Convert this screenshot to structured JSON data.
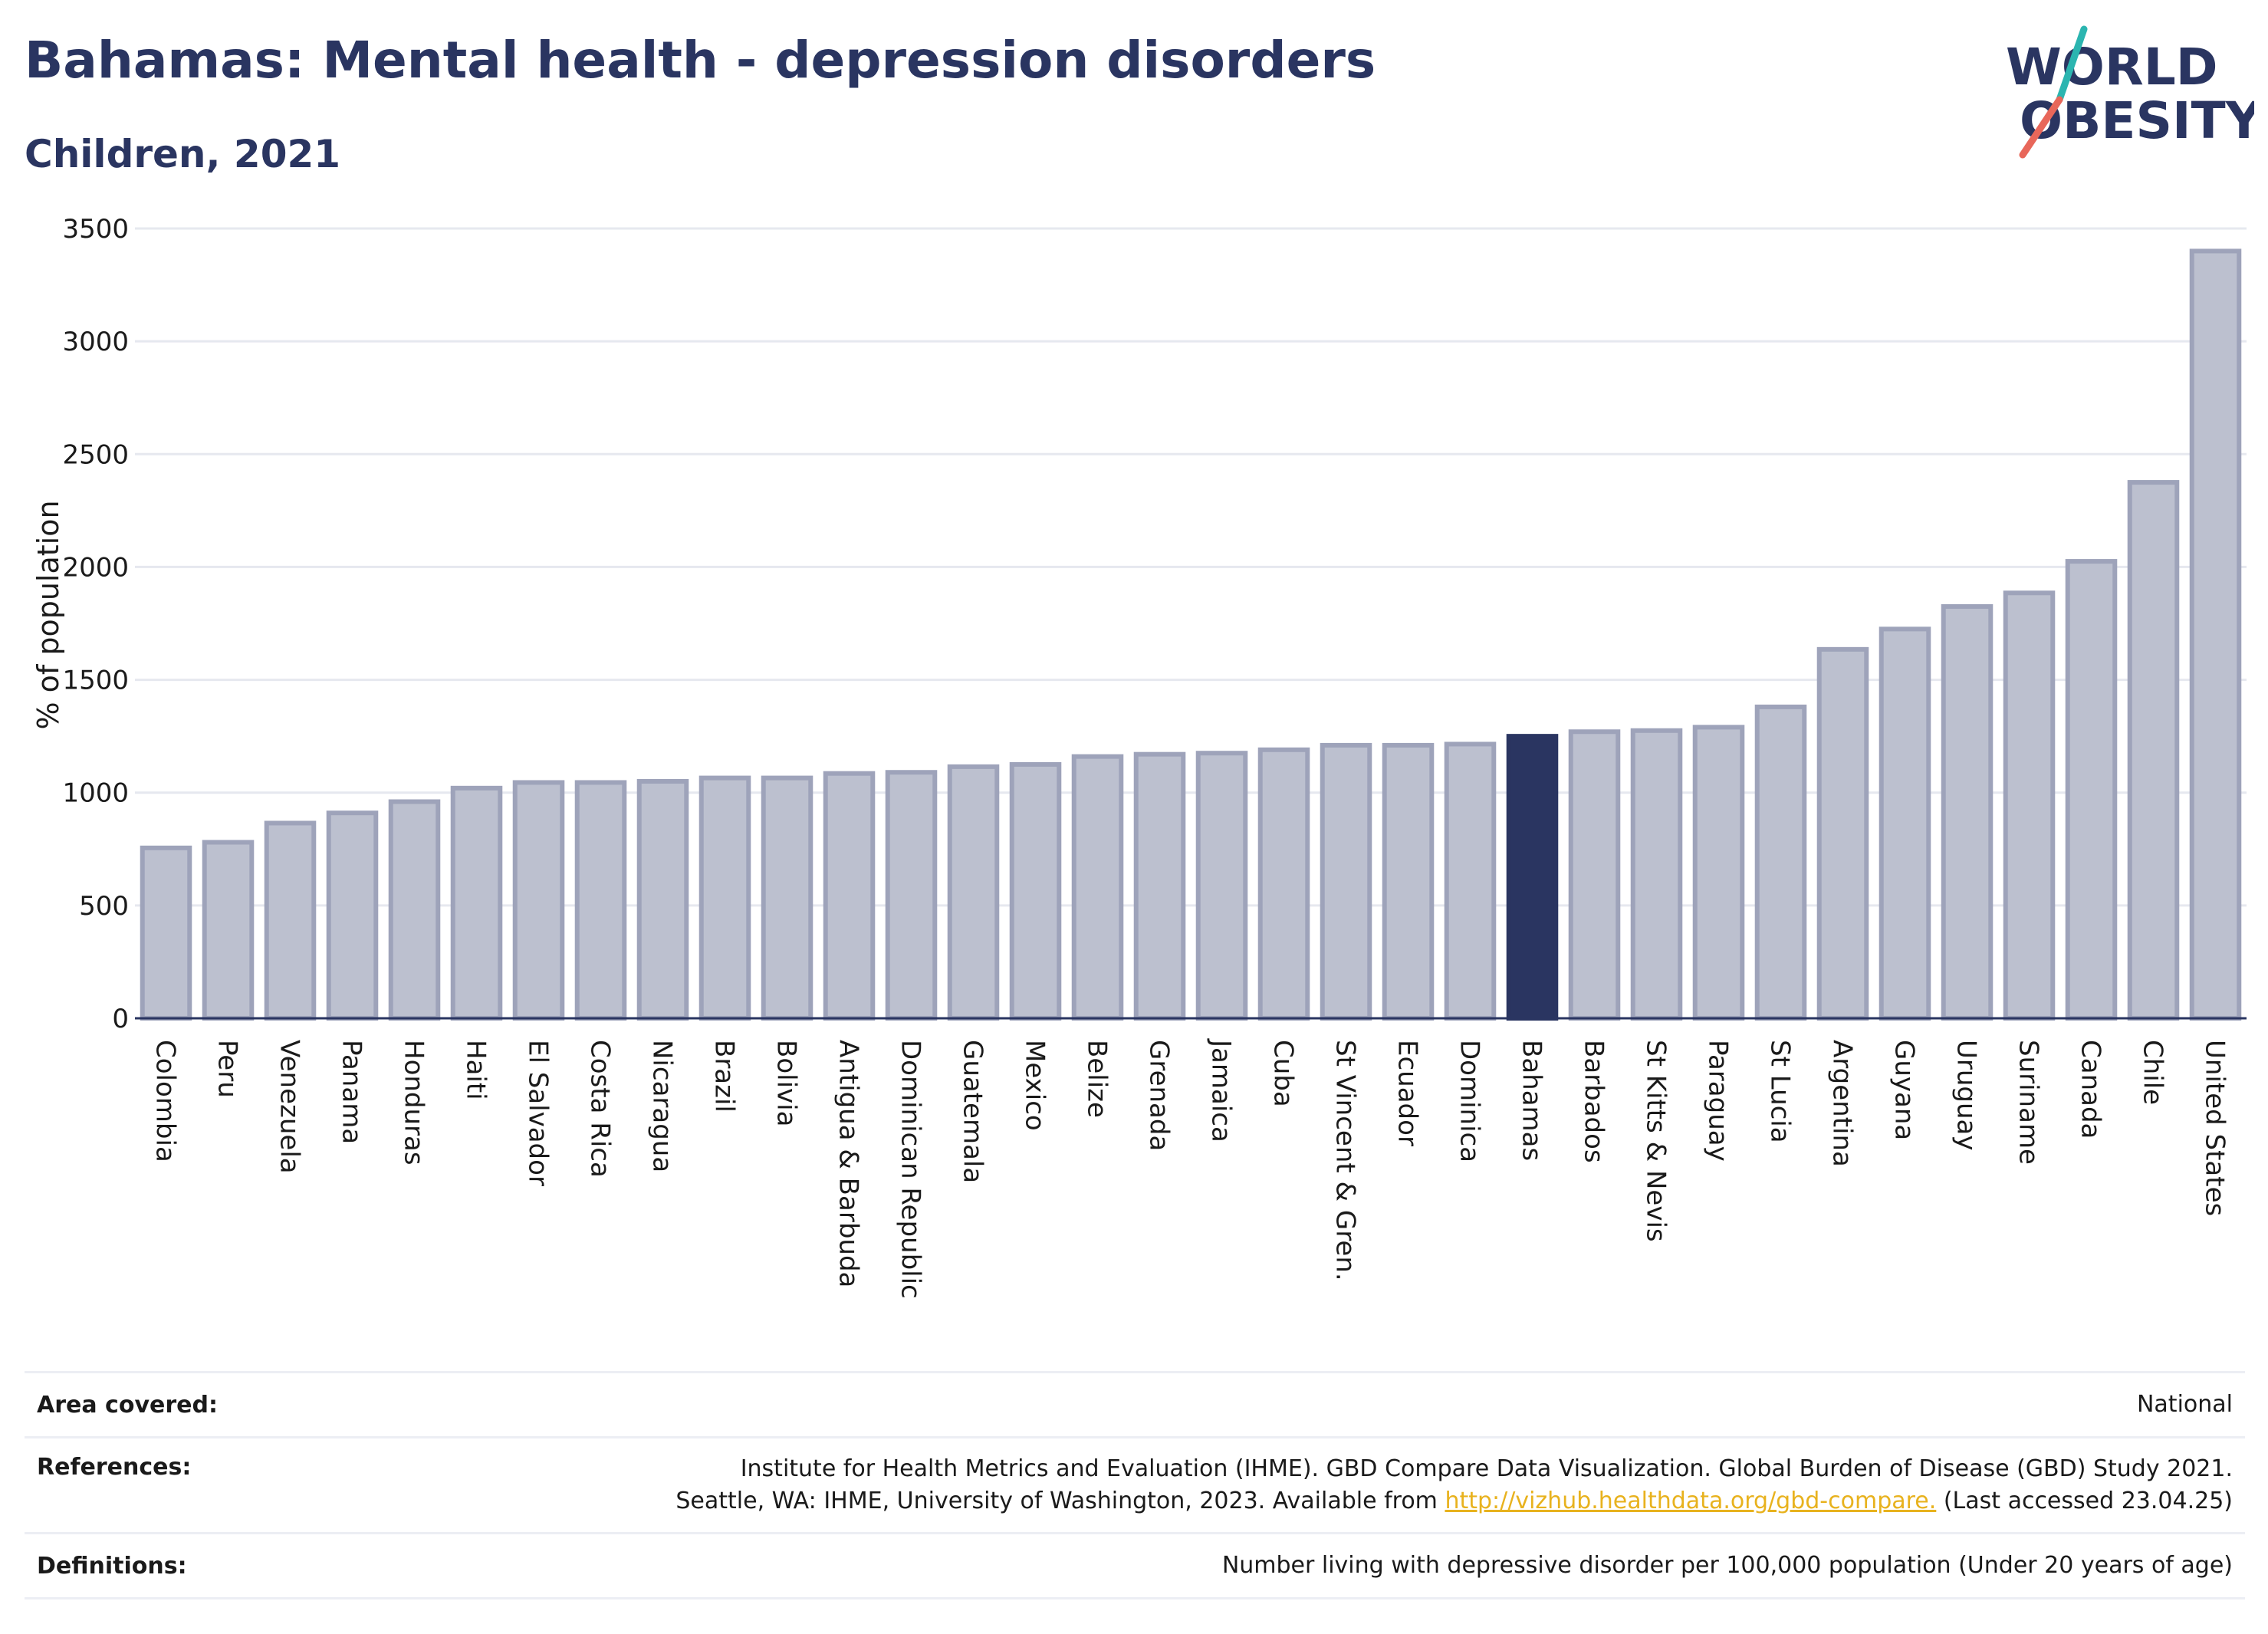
{
  "header": {
    "title": "Bahamas: Mental health - depression disorders",
    "subtitle": "Children, 2021"
  },
  "logo": {
    "line1": "WORLD",
    "line2": "OBESITY",
    "accent_colors": [
      "#2bb5b0",
      "#e8675a"
    ]
  },
  "colors": {
    "highlight": "#2a3561",
    "bar": "#bcc0cf",
    "bar_edge": "#9ea3ba"
  },
  "chart_data": {
    "type": "bar",
    "title": "Bahamas: Mental health - depression disorders",
    "subtitle": "Children, 2021",
    "xlabel": "",
    "ylabel": "% of population",
    "ylim": [
      0,
      3500
    ],
    "yticks": [
      0,
      500,
      1000,
      1500,
      2000,
      2500,
      3000,
      3500
    ],
    "grid": true,
    "highlight": "Bahamas",
    "categories": [
      "Colombia",
      "Peru",
      "Venezuela",
      "Panama",
      "Honduras",
      "Haiti",
      "El Salvador",
      "Costa Rica",
      "Nicaragua",
      "Brazil",
      "Bolivia",
      "Antigua & Barbuda",
      "Dominican Republic",
      "Guatemala",
      "Mexico",
      "Belize",
      "Grenada",
      "Jamaica",
      "Cuba",
      "St Vincent & Gren.",
      "Ecuador",
      "Dominica",
      "Bahamas",
      "Barbados",
      "St Kitts & Nevis",
      "Paraguay",
      "St Lucia",
      "Argentina",
      "Guyana",
      "Uruguay",
      "Suriname",
      "Canada",
      "Chile",
      "United States"
    ],
    "values": [
      755,
      780,
      865,
      910,
      960,
      1020,
      1045,
      1045,
      1050,
      1065,
      1065,
      1085,
      1090,
      1115,
      1125,
      1160,
      1170,
      1175,
      1190,
      1210,
      1210,
      1215,
      1250,
      1270,
      1275,
      1290,
      1380,
      1635,
      1725,
      1825,
      1885,
      2025,
      2375,
      3400
    ]
  },
  "info": {
    "area_label": "Area covered:",
    "area_value": "National",
    "references_label": "References:",
    "references_line1": "Institute for Health Metrics and Evaluation (IHME). GBD Compare Data Visualization. Global Burden of Disease (GBD) Study 2021.",
    "references_line2_pre": "Seattle, WA: IHME, University of Washington, 2023. Available from ",
    "references_link": "http://vizhub.healthdata.org/gbd-compare.",
    "references_line2_post": " (Last accessed 23.04.25)",
    "definitions_label": "Definitions:",
    "definitions_value": "Number living with depressive disorder per 100,000 population (Under 20 years of age)"
  }
}
